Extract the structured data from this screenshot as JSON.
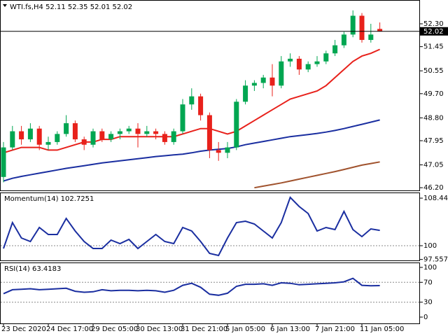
{
  "chart_data": [
    {
      "type": "candlestick",
      "title": "WTI.fs,H4  52.11 52.35 52.01 52.02",
      "categories": [
        "23 Dec 2020",
        null,
        null,
        null,
        null,
        "24 Dec 17:00",
        null,
        null,
        null,
        null,
        "29 Dec 05:00",
        null,
        null,
        null,
        null,
        "30 Dec 13:00",
        null,
        null,
        null,
        null,
        "31 Dec 21:00",
        null,
        null,
        null,
        null,
        "5 Jan 05:00",
        null,
        null,
        null,
        null,
        "6 Jan 13:00",
        null,
        null,
        null,
        null,
        "7 Jan 21:00",
        null,
        null,
        null,
        null,
        "11 Jan 05:00",
        null,
        null
      ],
      "open": [
        46.6,
        47.7,
        48.3,
        48.0,
        48.4,
        47.8,
        47.9,
        48.2,
        48.6,
        48.0,
        47.8,
        48.3,
        48.0,
        48.2,
        48.3,
        48.4,
        48.2,
        48.3,
        48.2,
        47.9,
        48.3,
        49.3,
        49.6,
        48.9,
        47.6,
        47.5,
        47.7,
        49.4,
        50.0,
        50.1,
        50.3,
        50.0,
        50.9,
        51.0,
        50.6,
        50.8,
        50.9,
        51.2,
        51.5,
        51.9,
        52.6,
        51.7,
        52.11
      ],
      "high": [
        47.9,
        48.5,
        48.5,
        48.6,
        48.5,
        48.1,
        48.3,
        48.9,
        48.7,
        48.1,
        48.4,
        48.4,
        48.3,
        48.4,
        48.5,
        48.6,
        48.5,
        48.4,
        48.3,
        48.4,
        49.5,
        49.9,
        49.7,
        49.0,
        47.9,
        47.9,
        49.5,
        50.2,
        50.2,
        50.4,
        50.8,
        51.1,
        51.2,
        51.1,
        50.9,
        51.1,
        51.3,
        51.7,
        52.0,
        52.8,
        52.7,
        52.3,
        52.35
      ],
      "low": [
        46.4,
        47.6,
        47.8,
        47.9,
        47.6,
        47.6,
        47.8,
        48.1,
        47.9,
        47.6,
        47.7,
        47.9,
        47.9,
        48.0,
        48.2,
        47.7,
        48.1,
        48.0,
        47.8,
        47.8,
        48.2,
        49.1,
        48.7,
        47.3,
        47.2,
        47.3,
        47.6,
        49.3,
        49.8,
        49.9,
        49.6,
        49.9,
        50.7,
        50.4,
        50.5,
        50.7,
        50.8,
        51.1,
        51.4,
        51.8,
        51.6,
        51.6,
        52.01
      ],
      "close": [
        47.7,
        48.3,
        48.0,
        48.4,
        47.8,
        47.9,
        48.2,
        48.6,
        48.0,
        47.8,
        48.3,
        48.0,
        48.2,
        48.3,
        48.4,
        48.2,
        48.3,
        48.2,
        47.9,
        48.3,
        49.3,
        49.6,
        48.9,
        47.6,
        47.5,
        47.7,
        49.4,
        50.0,
        50.1,
        50.3,
        50.0,
        50.9,
        51.0,
        50.6,
        50.8,
        50.9,
        51.2,
        51.5,
        51.9,
        52.6,
        51.7,
        51.9,
        52.02
      ],
      "up_color": "#00a651",
      "down_color": "#e8211b",
      "series": [
        {
          "color": "#e8211b",
          "values": [
            47.5,
            47.6,
            47.7,
            47.7,
            47.7,
            47.6,
            47.6,
            47.7,
            47.8,
            47.9,
            47.9,
            48.0,
            48.0,
            48.1,
            48.1,
            48.1,
            48.1,
            48.1,
            48.1,
            48.1,
            48.2,
            48.3,
            48.4,
            48.4,
            48.3,
            48.2,
            48.3,
            48.5,
            48.7,
            48.9,
            49.1,
            49.3,
            49.5,
            49.6,
            49.7,
            49.8,
            50.0,
            50.3,
            50.6,
            50.9,
            51.1,
            51.2,
            51.35
          ]
        },
        {
          "color": "#1a2ea0",
          "values": [
            46.45,
            46.55,
            46.62,
            46.68,
            46.74,
            46.8,
            46.86,
            46.92,
            46.97,
            47.02,
            47.07,
            47.12,
            47.16,
            47.2,
            47.24,
            47.28,
            47.32,
            47.36,
            47.39,
            47.42,
            47.45,
            47.5,
            47.56,
            47.6,
            47.63,
            47.66,
            47.72,
            47.8,
            47.86,
            47.92,
            47.98,
            48.04,
            48.1,
            48.14,
            48.18,
            48.22,
            48.27,
            48.33,
            48.4,
            48.48,
            48.56,
            48.64,
            48.72
          ]
        },
        {
          "color": "#a0522d",
          "values": [
            null,
            null,
            null,
            null,
            null,
            null,
            null,
            null,
            null,
            null,
            null,
            null,
            null,
            null,
            null,
            null,
            null,
            null,
            null,
            null,
            null,
            null,
            null,
            null,
            null,
            null,
            null,
            null,
            46.2,
            46.26,
            46.32,
            46.38,
            46.45,
            46.52,
            46.59,
            46.66,
            46.73,
            46.8,
            46.88,
            46.96,
            47.04,
            47.1,
            47.16
          ]
        }
      ],
      "last_price": 52.02,
      "ylim": [
        46.1,
        53.16
      ],
      "yticks": [
        {
          "value": 46.2,
          "label": "46.20"
        },
        47.05,
        47.95,
        {
          "value": 48.8,
          "label": "48.80"
        },
        {
          "value": 49.7,
          "label": "49.70"
        },
        50.55,
        51.45,
        {
          "value": 52.3,
          "label": "52.30"
        }
      ]
    },
    {
      "type": "line",
      "title": "Momentum(14) 102.7251",
      "series": [
        {
          "color": "#1a2ea0",
          "values": [
            99.5,
            104.1,
            101.37,
            100.75,
            103.23,
            101.99,
            101.99,
            104.84,
            102.61,
            100.75,
            99.5,
            99.5,
            100.99,
            100.37,
            101.12,
            99.5,
            100.75,
            101.99,
            100.75,
            100.37,
            103.23,
            102.61,
            100.75,
            98.63,
            98.26,
            101.37,
            104.1,
            104.35,
            103.85,
            102.61,
            101.37,
            104.1,
            108.57,
            106.96,
            105.71,
            102.61,
            103.23,
            102.86,
            106.09,
            102.86,
            101.61,
            102.98,
            102.7251
          ]
        }
      ],
      "levels": [
        100
      ],
      "ylim": [
        97.39,
        109.32
      ],
      "yticks": [
        108.4424,
        100,
        97.557
      ]
    },
    {
      "type": "line",
      "title": "RSI(14) 63.4183",
      "series": [
        {
          "color": "#1a2ea0",
          "values": [
            47,
            55,
            56,
            57,
            55,
            56,
            57,
            58,
            52,
            50,
            51,
            55,
            53,
            54,
            54,
            53,
            54,
            53,
            50,
            54,
            64,
            68,
            60,
            46,
            44,
            48,
            62,
            66,
            66,
            67,
            64,
            69,
            68,
            65,
            66,
            67,
            68,
            69,
            71,
            78,
            64,
            63,
            63.4183
          ]
        }
      ],
      "levels": [
        70,
        30
      ],
      "ylim": [
        -12.68,
        108.45
      ],
      "yticks": [
        100,
        70,
        30,
        0
      ]
    }
  ]
}
